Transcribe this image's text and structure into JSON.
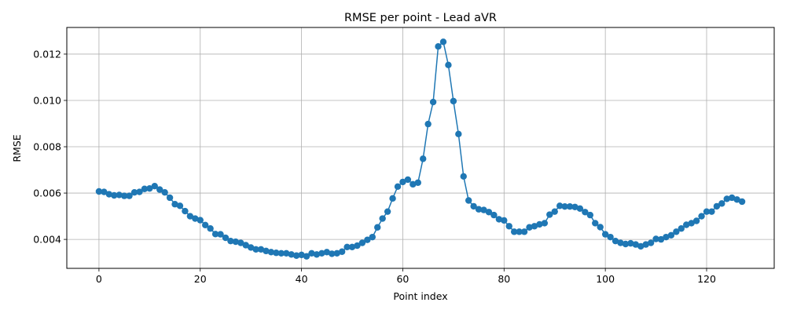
{
  "chart_data": {
    "type": "line",
    "title": "RMSE per point - Lead aVR",
    "xlabel": "Point index",
    "ylabel": "RMSE",
    "xlim": [
      -6.35,
      133.35
    ],
    "ylim": [
      0.00275,
      0.01315
    ],
    "xticks": [
      0,
      20,
      40,
      60,
      80,
      100,
      120
    ],
    "yticks": [
      0.004,
      0.006,
      0.008,
      0.01,
      0.012
    ],
    "ytick_labels": [
      "0.004",
      "0.006",
      "0.008",
      "0.010",
      "0.012"
    ],
    "grid": true,
    "marker": "circle",
    "series": [
      {
        "color": "#1f77b4",
        "x": [
          0,
          1,
          2,
          3,
          4,
          5,
          6,
          7,
          8,
          9,
          10,
          11,
          12,
          13,
          14,
          15,
          16,
          17,
          18,
          19,
          20,
          21,
          22,
          23,
          24,
          25,
          26,
          27,
          28,
          29,
          30,
          31,
          32,
          33,
          34,
          35,
          36,
          37,
          38,
          39,
          40,
          41,
          42,
          43,
          44,
          45,
          46,
          47,
          48,
          49,
          50,
          51,
          52,
          53,
          54,
          55,
          56,
          57,
          58,
          59,
          60,
          61,
          62,
          63,
          64,
          65,
          66,
          67,
          68,
          69,
          70,
          71,
          72,
          73,
          74,
          75,
          76,
          77,
          78,
          79,
          80,
          81,
          82,
          83,
          84,
          85,
          86,
          87,
          88,
          89,
          90,
          91,
          92,
          93,
          94,
          95,
          96,
          97,
          98,
          99,
          100,
          101,
          102,
          103,
          104,
          105,
          106,
          107,
          108,
          109,
          110,
          111,
          112,
          113,
          114,
          115,
          116,
          117,
          118,
          119,
          120,
          121,
          122,
          123,
          124,
          125,
          126,
          127
        ],
        "values": [
          0.00607,
          0.00605,
          0.00595,
          0.0059,
          0.00592,
          0.00588,
          0.00588,
          0.00603,
          0.00605,
          0.00618,
          0.0062,
          0.0063,
          0.00615,
          0.00603,
          0.0058,
          0.00552,
          0.00545,
          0.00522,
          0.005,
          0.0049,
          0.00483,
          0.00462,
          0.00447,
          0.00423,
          0.00422,
          0.00407,
          0.00393,
          0.0039,
          0.00385,
          0.00375,
          0.00365,
          0.00357,
          0.00357,
          0.0035,
          0.00345,
          0.00342,
          0.0034,
          0.0034,
          0.00335,
          0.0033,
          0.00333,
          0.00327,
          0.0034,
          0.00335,
          0.0034,
          0.00345,
          0.00338,
          0.0034,
          0.00347,
          0.00367,
          0.00367,
          0.00373,
          0.00385,
          0.00398,
          0.0041,
          0.00452,
          0.0049,
          0.0052,
          0.00577,
          0.00628,
          0.00648,
          0.00658,
          0.00638,
          0.00645,
          0.00748,
          0.00898,
          0.00993,
          0.01233,
          0.01253,
          0.01153,
          0.00997,
          0.00855,
          0.00672,
          0.00568,
          0.00543,
          0.0053,
          0.00527,
          0.00518,
          0.00505,
          0.00487,
          0.00482,
          0.00457,
          0.00433,
          0.00433,
          0.00433,
          0.00452,
          0.00457,
          0.00465,
          0.0047,
          0.00507,
          0.0052,
          0.00545,
          0.00542,
          0.00542,
          0.0054,
          0.00533,
          0.00518,
          0.00505,
          0.0047,
          0.00453,
          0.00422,
          0.0041,
          0.00393,
          0.00385,
          0.0038,
          0.00383,
          0.00378,
          0.0037,
          0.00378,
          0.00385,
          0.00402,
          0.004,
          0.0041,
          0.00418,
          0.00433,
          0.00447,
          0.00463,
          0.0047,
          0.0048,
          0.005,
          0.0052,
          0.0052,
          0.00543,
          0.00555,
          0.00575,
          0.0058,
          0.00572,
          0.00563
        ]
      }
    ]
  }
}
